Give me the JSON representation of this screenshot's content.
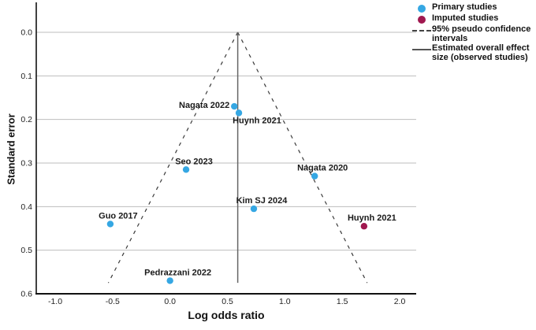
{
  "chart_data": {
    "type": "scatter",
    "subtype": "funnel-plot",
    "title": "",
    "xlabel": "Log odds ratio",
    "ylabel": "Standard error",
    "x_ticks": [
      "-1.0",
      "-0.5",
      "0.0",
      "0.5",
      "1.0",
      "1.5",
      "2.0"
    ],
    "y_ticks": [
      "0.0",
      "0.1",
      "0.2",
      "0.3",
      "0.4",
      "0.5",
      "0.6"
    ],
    "x_range": [
      -1.0,
      2.0
    ],
    "y_range": [
      0.0,
      0.6
    ],
    "y_axis_reversed": true,
    "grid": "horizontal",
    "overall_effect": 0.59,
    "pseudo_ci_z": 1.96,
    "funnel_max_se": 0.575,
    "colors": {
      "primary": "#35a7e3",
      "imputed": "#a0184f",
      "grid": "#bdbdbd",
      "axis": "#111111",
      "ci_line": "#3a3a3a",
      "effect_line": "#666666"
    },
    "series": [
      {
        "name": "Primary studies",
        "color": "#35a7e3",
        "points": [
          {
            "label": "Nagata 2022",
            "x": 0.56,
            "y": 0.17,
            "label_pos": "left"
          },
          {
            "label": "Huynh 2021",
            "x": 0.6,
            "y": 0.185,
            "label_pos": "below"
          },
          {
            "label": "Seo 2023",
            "x": 0.14,
            "y": 0.315,
            "label_pos": "above"
          },
          {
            "label": "Nagata 2020",
            "x": 1.26,
            "y": 0.33,
            "label_pos": "above"
          },
          {
            "label": "Kim SJ 2024",
            "x": 0.73,
            "y": 0.405,
            "label_pos": "above"
          },
          {
            "label": "Guo 2017",
            "x": -0.52,
            "y": 0.44,
            "label_pos": "above"
          },
          {
            "label": "Pedrazzani 2022",
            "x": 0.0,
            "y": 0.57,
            "label_pos": "above"
          }
        ]
      },
      {
        "name": "Imputed studies",
        "color": "#a0184f",
        "points": [
          {
            "label": "Huynh 2021",
            "x": 1.69,
            "y": 0.445,
            "label_pos": "above"
          }
        ]
      }
    ]
  },
  "legend": {
    "items": [
      {
        "marker": "dot",
        "color": "#35a7e3",
        "label": "Primary studies"
      },
      {
        "marker": "dot",
        "color": "#a0184f",
        "label": "Imputed studies"
      },
      {
        "marker": "dashed-line",
        "label": "95% pseudo confidence intervals"
      },
      {
        "marker": "solid-line",
        "label": "Estimated overall effect size (observed studies)"
      }
    ]
  }
}
